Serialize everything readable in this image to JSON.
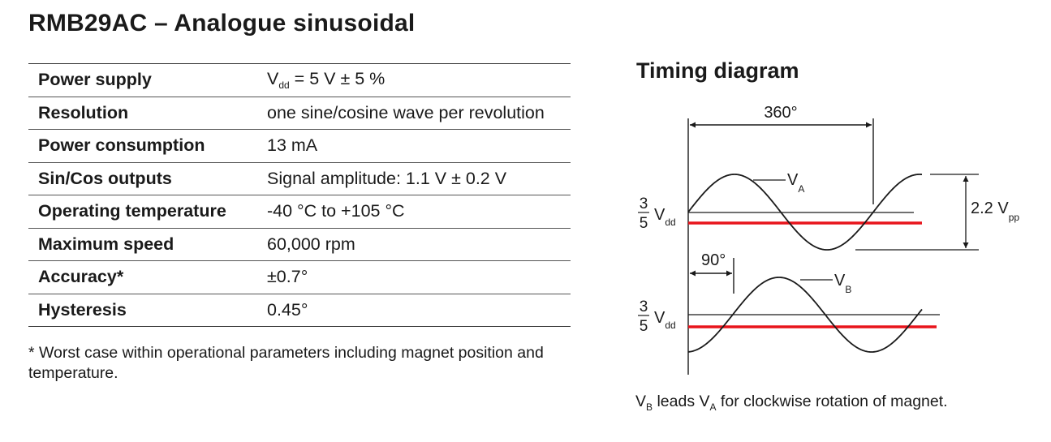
{
  "title": "RMB29AC – Analogue sinusoidal",
  "specs": {
    "rows": [
      {
        "param": "Power supply",
        "value_main": "V",
        "value_sub": "dd",
        "value_rest": " = 5 V ± 5 %"
      },
      {
        "param": "Resolution",
        "value": "one sine/cosine wave per revolution"
      },
      {
        "param": "Power consumption",
        "value": "13 mA"
      },
      {
        "param": "Sin/Cos outputs",
        "value": "Signal amplitude: 1.1 V ± 0.2 V"
      },
      {
        "param": "Operating temperature",
        "value": "-40 °C to +105 °C"
      },
      {
        "param": "Maximum speed",
        "value": "60,000 rpm"
      },
      {
        "param": "Accuracy*",
        "value": "±0.7°"
      },
      {
        "param": "Hysteresis",
        "value": "0.45°"
      }
    ]
  },
  "footnote": "* Worst case within operational parameters including magnet position and temperature.",
  "timing": {
    "title": "Timing diagram",
    "period_label": "360°",
    "phase_label": "90°",
    "va_main": "V",
    "va_sub": "A",
    "vb_main": "V",
    "vb_sub": "B",
    "ref_num": "3",
    "ref_den": "5",
    "ref_main": "V",
    "ref_sub": "dd",
    "amp_main": "2.2 V",
    "amp_sub": "pp",
    "caption_p1": "V",
    "caption_p1_sub": "B",
    "caption_p2": " leads V",
    "caption_p2_sub": "A",
    "caption_p3": " for clockwise rotation of magnet.",
    "colors": {
      "reference": "#e8141b",
      "line": "#1a1a1a"
    }
  }
}
